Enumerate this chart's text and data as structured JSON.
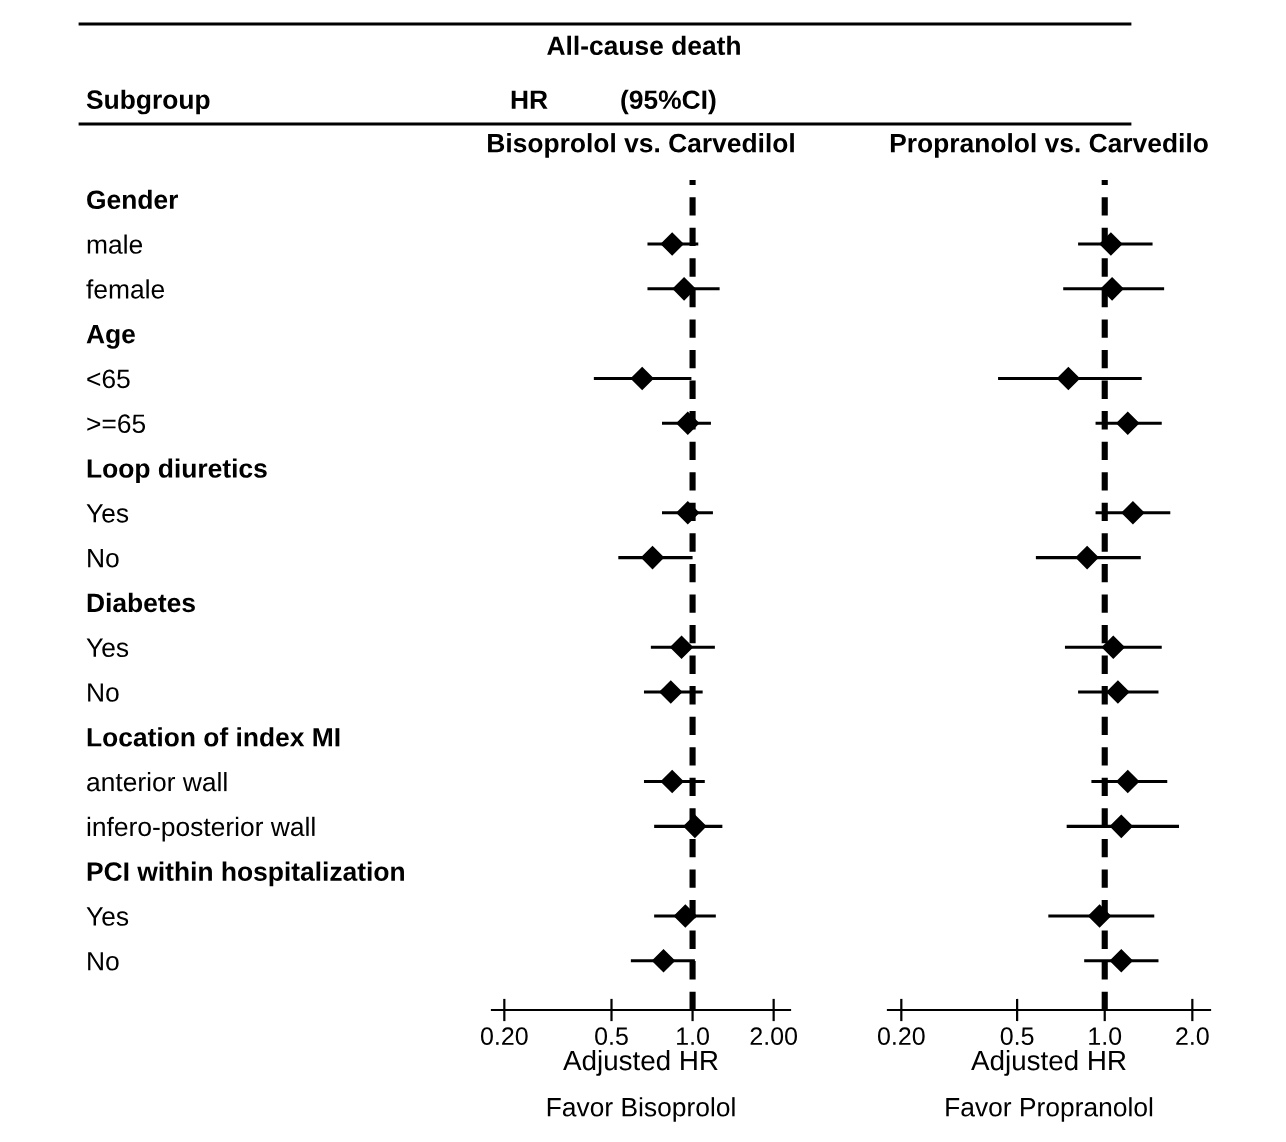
{
  "chart_data": [
    {
      "type": "scatter",
      "orientation": "horizontal",
      "title": "Bisoprolol vs. Carvedilol",
      "xlabel": "Adjusted HR",
      "categories": [
        "Gender",
        "male",
        "female",
        "Age",
        "<65",
        ">=65",
        "Loop diuretics",
        "Yes",
        "No",
        "Diabetes",
        "Yes",
        "No",
        "Location of index MI",
        "anterior wall",
        "infero-posterior wall",
        "PCI within hospitalization",
        "Yes",
        "No"
      ],
      "series": [
        {
          "color": "#000000",
          "values": [
            null,
            0.84,
            0.93,
            null,
            0.65,
            0.96,
            null,
            0.96,
            0.71,
            null,
            0.91,
            0.83,
            null,
            0.84,
            1.02,
            null,
            0.94,
            0.78
          ],
          "errors": [
            null,
            [
              0.68,
              1.05
            ],
            [
              0.68,
              1.26
            ],
            null,
            [
              0.43,
              0.99
            ],
            [
              0.77,
              1.17
            ],
            null,
            [
              0.77,
              1.19
            ],
            [
              0.53,
              1.0
            ],
            null,
            [
              0.7,
              1.21
            ],
            [
              0.66,
              1.09
            ],
            null,
            [
              0.66,
              1.11
            ],
            [
              0.72,
              1.29
            ],
            null,
            [
              0.72,
              1.22
            ],
            [
              0.59,
              1.02
            ]
          ]
        }
      ],
      "marker": "diamond",
      "log": "x",
      "grid": false,
      "legend": false,
      "xlim": [
        0.18,
        2.3
      ],
      "xticks": [
        {
          "value": 0.2,
          "label": "0.20"
        },
        0.5,
        {
          "value": 1,
          "label": "1.0"
        },
        {
          "value": 2,
          "label": "2.00"
        }
      ],
      "ref_lines": [
        {
          "axis": "x",
          "value": 1,
          "color": "#000000",
          "line_style": "dashed"
        }
      ],
      "annotations": [
        "All-cause death",
        "Subgroup",
        "HR",
        "(95%CI)",
        "Favor Bisoprolol"
      ]
    },
    {
      "type": "scatter",
      "orientation": "horizontal",
      "title": "Propranolol vs. Carvedilo",
      "xlabel": "Adjusted HR",
      "categories": [
        null,
        null,
        null,
        null,
        null,
        null,
        null,
        null,
        null,
        null,
        null,
        null,
        null,
        null,
        null,
        null,
        null,
        null
      ],
      "series": [
        {
          "color": "#000000",
          "values": [
            null,
            1.05,
            1.06,
            null,
            0.75,
            1.2,
            null,
            1.25,
            0.87,
            null,
            1.07,
            1.11,
            null,
            1.2,
            1.14,
            null,
            0.96,
            1.14
          ],
          "errors": [
            null,
            [
              0.81,
              1.46
            ],
            [
              0.72,
              1.6
            ],
            null,
            [
              0.43,
              1.34
            ],
            [
              0.93,
              1.57
            ],
            null,
            [
              0.93,
              1.68
            ],
            [
              0.58,
              1.33
            ],
            null,
            [
              0.73,
              1.57
            ],
            [
              0.81,
              1.53
            ],
            null,
            [
              0.9,
              1.64
            ],
            [
              0.74,
              1.8
            ],
            null,
            [
              0.64,
              1.48
            ],
            [
              0.85,
              1.53
            ]
          ]
        }
      ],
      "marker": "diamond",
      "log": "x",
      "grid": false,
      "legend": false,
      "tick_labels": "x",
      "xlim": [
        0.18,
        2.3
      ],
      "xticks": [
        {
          "value": 0.2,
          "label": "0.20"
        },
        0.5,
        {
          "value": 1,
          "label": "1.0"
        },
        {
          "value": 2,
          "label": "2.0"
        }
      ],
      "ref_lines": [
        {
          "axis": "x",
          "value": 1,
          "color": "#000000",
          "line_style": "dashed"
        }
      ],
      "annotations": [
        "Favor Propranolol"
      ]
    }
  ]
}
